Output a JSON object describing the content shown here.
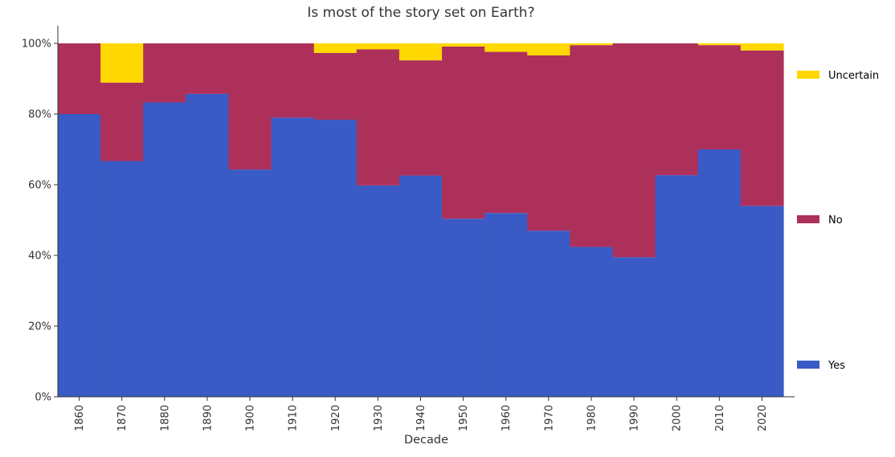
{
  "chart_data": {
    "type": "bar",
    "stacked": true,
    "normalized": true,
    "title": "Is most of the story set on Earth?",
    "xlabel": "Decade",
    "ylabel": "",
    "ylim": [
      0,
      100
    ],
    "yticks": [
      "0%",
      "20%",
      "40%",
      "60%",
      "80%",
      "100%"
    ],
    "categories": [
      "1860",
      "1870",
      "1880",
      "1890",
      "1900",
      "1910",
      "1920",
      "1930",
      "1940",
      "1950",
      "1960",
      "1970",
      "1980",
      "1990",
      "2000",
      "2010",
      "2020"
    ],
    "series": [
      {
        "name": "Yes",
        "color": "#3a5bc5",
        "values": [
          80.0,
          66.7,
          83.3,
          85.7,
          64.3,
          79.0,
          78.4,
          59.8,
          62.6,
          50.4,
          52.0,
          47.0,
          42.4,
          39.5,
          62.7,
          70.0,
          54.0
        ]
      },
      {
        "name": "No",
        "color": "#ad305b",
        "values": [
          20.0,
          22.2,
          16.7,
          14.3,
          35.7,
          21.0,
          18.9,
          38.5,
          32.6,
          48.7,
          45.6,
          49.6,
          57.1,
          60.5,
          37.3,
          29.5,
          44.0
        ]
      },
      {
        "name": "Uncertain",
        "color": "#fed800",
        "values": [
          0.0,
          11.1,
          0.0,
          0.0,
          0.0,
          0.0,
          2.7,
          1.7,
          4.8,
          0.9,
          2.4,
          3.4,
          0.5,
          0.0,
          0.0,
          0.5,
          2.0
        ]
      }
    ],
    "legend": {
      "placement": "right",
      "order": [
        "Uncertain",
        "No",
        "Yes"
      ]
    },
    "grid": false
  }
}
